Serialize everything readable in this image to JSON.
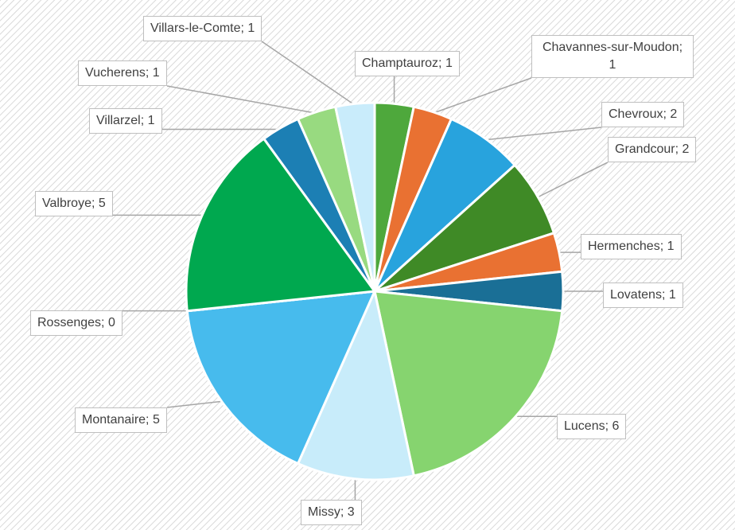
{
  "chart_data": {
    "type": "pie",
    "categories": [
      "Champtauroz",
      "Chavannes-sur-Moudon",
      "Chevroux",
      "Grandcour",
      "Hermenches",
      "Lovatens",
      "Lucens",
      "Missy",
      "Montanaire",
      "Rossenges",
      "Valbroye",
      "Villarzel",
      "Vucherens",
      "Villars-le-Comte"
    ],
    "values": [
      1,
      1,
      2,
      2,
      1,
      1,
      6,
      3,
      5,
      0,
      5,
      1,
      1,
      1
    ],
    "value_labels": [
      "Champtauroz; 1",
      "Chavannes-sur-Moudon; 1",
      "Chevroux; 2",
      "Grandcour; 2",
      "Hermenches; 1",
      "Lovatens; 1",
      "Lucens; 6",
      "Missy; 3",
      "Montanaire; 5",
      "Rossenges; 0",
      "Valbroye; 5",
      "Villarzel; 1",
      "Vucherens; 1",
      "Villars-le-Comte; 1"
    ],
    "colors": [
      "#4ea83c",
      "#e97132",
      "#28a3dd",
      "#3f8a26",
      "#e97132",
      "#1a6f96",
      "#86d46f",
      "#c8ecfa",
      "#47bbed",
      "#7fb3d5",
      "#00a84f",
      "#1c7fb4",
      "#98da80",
      "#c9ecfb"
    ]
  }
}
